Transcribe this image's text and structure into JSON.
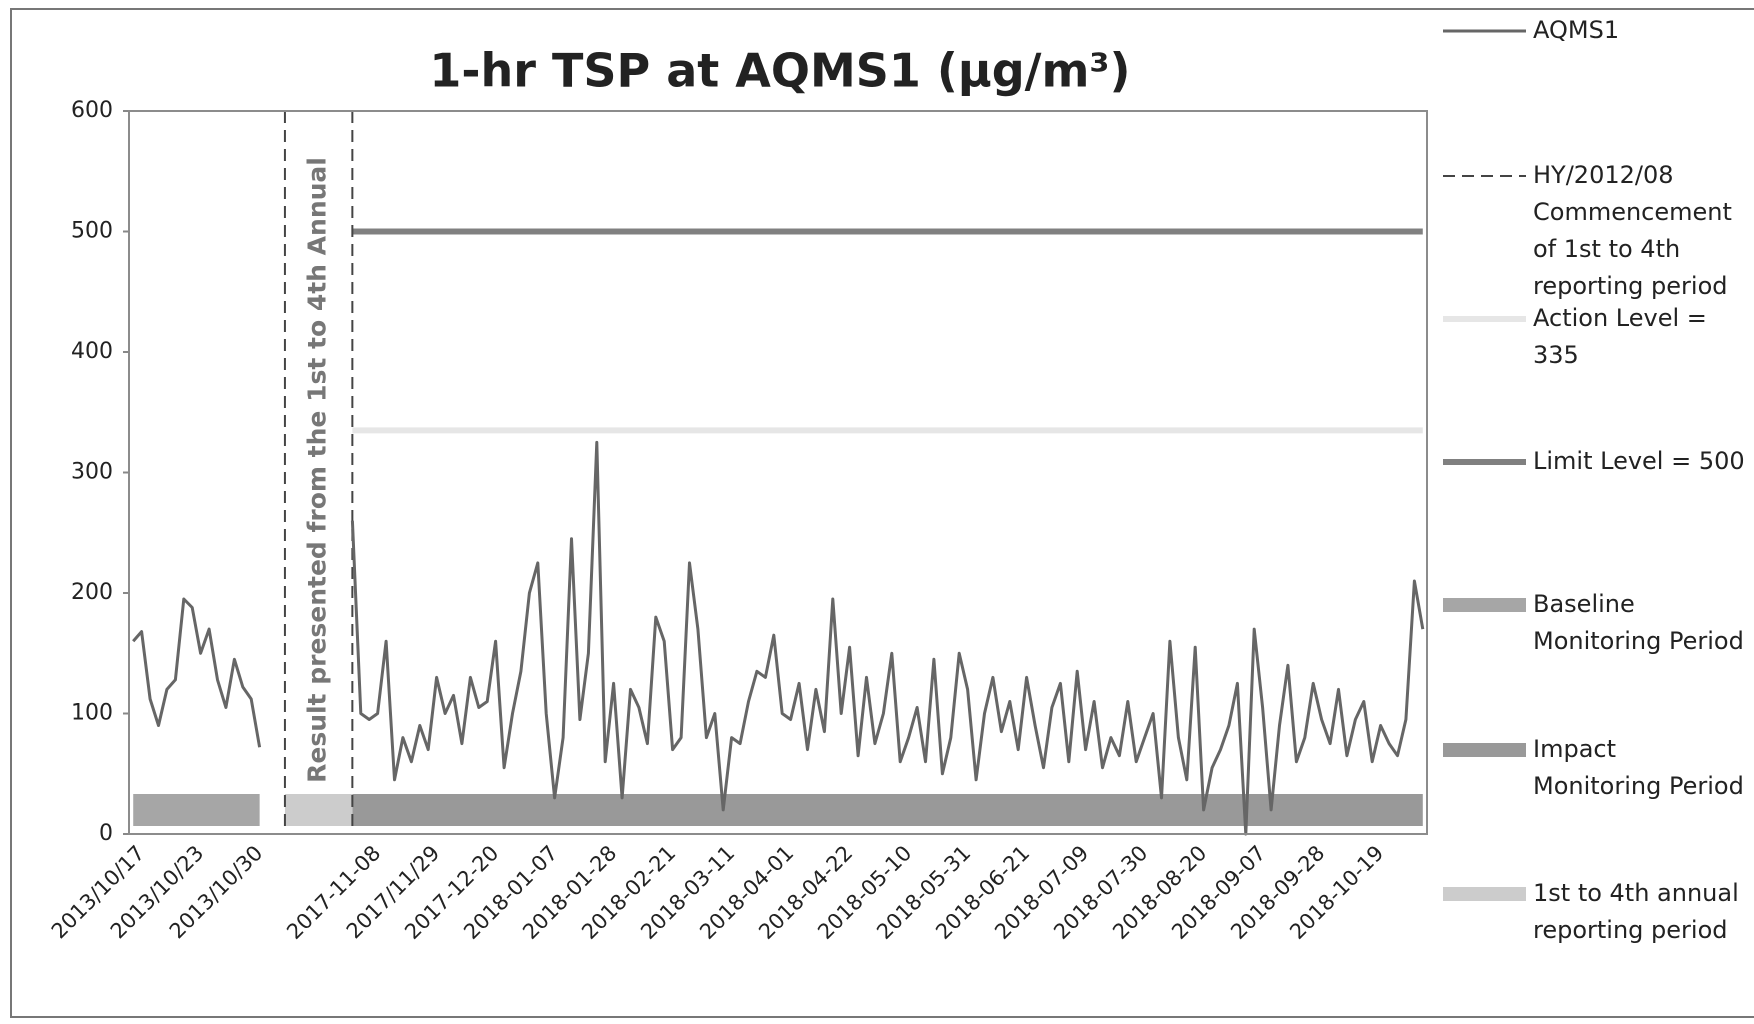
{
  "chart_data": {
    "type": "line",
    "title": "1-hr TSP at AQMS1 (µg/m³)",
    "annotation": "Result presented from the 1st to 4th Annual",
    "ylim": [
      0,
      600
    ],
    "yticks": [
      0,
      100,
      200,
      300,
      400,
      500,
      600
    ],
    "grid": false,
    "categories": [
      null,
      "2013/10/17",
      null,
      null,
      null,
      null,
      null,
      null,
      "2013/10/23",
      null,
      null,
      null,
      null,
      null,
      null,
      "2013/10/30",
      null,
      null,
      null,
      null,
      null,
      null,
      null,
      null,
      null,
      null,
      null,
      null,
      null,
      "2017-11-08",
      null,
      null,
      null,
      null,
      null,
      null,
      "2017/11/29",
      null,
      null,
      null,
      null,
      null,
      null,
      "2017-12-20",
      null,
      null,
      null,
      null,
      null,
      null,
      "2018-01-07",
      null,
      null,
      null,
      null,
      null,
      null,
      "2018-01-28",
      null,
      null,
      null,
      null,
      null,
      null,
      "2018-02-21",
      null,
      null,
      null,
      null,
      null,
      null,
      "2018-03-11",
      null,
      null,
      null,
      null,
      null,
      null,
      "2018-04-01",
      null,
      null,
      null,
      null,
      null,
      null,
      "2018-04-22",
      null,
      null,
      null,
      null,
      null,
      null,
      "2018-05-10",
      null,
      null,
      null,
      null,
      null,
      null,
      "2018-05-31",
      null,
      null,
      null,
      null,
      null,
      null,
      "2018-06-21",
      null,
      null,
      null,
      null,
      null,
      null,
      "2018-07-09",
      null,
      null,
      null,
      null,
      null,
      null,
      "2018-07-30",
      null,
      null,
      null,
      null,
      null,
      null,
      "2018-08-20",
      null,
      null,
      null,
      null,
      null,
      null,
      "2018-09-07",
      null,
      null,
      null,
      null,
      null,
      null,
      "2018-09-28",
      null,
      null,
      null,
      null,
      null,
      null,
      "2018-10-19",
      null,
      null,
      null,
      null,
      null
    ],
    "series": [
      {
        "name": "AQMS1",
        "type": "line",
        "color": "#666666",
        "values": [
          160,
          168,
          112,
          90,
          120,
          128,
          195,
          188,
          150,
          170,
          128,
          105,
          145,
          122,
          112,
          72,
          null,
          null,
          null,
          null,
          null,
          null,
          null,
          null,
          null,
          null,
          260,
          100,
          95,
          100,
          160,
          45,
          80,
          60,
          90,
          70,
          130,
          100,
          115,
          75,
          130,
          105,
          110,
          160,
          55,
          100,
          135,
          200,
          225,
          100,
          30,
          80,
          245,
          95,
          150,
          325,
          60,
          125,
          30,
          120,
          105,
          75,
          180,
          160,
          70,
          80,
          225,
          170,
          80,
          100,
          20,
          80,
          75,
          110,
          135,
          130,
          165,
          100,
          95,
          125,
          70,
          120,
          85,
          195,
          100,
          155,
          65,
          130,
          75,
          100,
          150,
          60,
          80,
          105,
          60,
          145,
          50,
          80,
          150,
          120,
          45,
          100,
          130,
          85,
          110,
          70,
          130,
          90,
          55,
          105,
          125,
          60,
          135,
          70,
          110,
          55,
          80,
          65,
          110,
          60,
          80,
          100,
          30,
          160,
          80,
          45,
          155,
          20,
          55,
          70,
          90,
          125,
          0,
          170,
          105,
          20,
          90,
          140,
          60,
          80,
          125,
          95,
          75,
          120,
          65,
          95,
          110,
          60,
          90,
          75,
          65,
          95,
          210,
          170
        ]
      },
      {
        "name": "HY/2012/08 Commencement of 1st to 4th reporting period",
        "type": "vline",
        "color": "#444444",
        "x": [
          18,
          26
        ]
      },
      {
        "name": "Action Level = 335",
        "type": "hline",
        "color": "#e6e6e6",
        "value": 335,
        "x": [
          26,
          153
        ]
      },
      {
        "name": "Limit Level = 500",
        "type": "hline",
        "color": "#808080",
        "value": 500,
        "x": [
          26,
          153
        ]
      },
      {
        "name": "Baseline Monitoring Period",
        "type": "band",
        "color": "#a6a6a6",
        "x": [
          0,
          15
        ]
      },
      {
        "name": "Impact Monitoring Period",
        "type": "band",
        "color": "#999999",
        "x": [
          26,
          153
        ]
      },
      {
        "name": "1st to 4th annual reporting period",
        "type": "band",
        "color": "#cccccc",
        "x": [
          18,
          26
        ]
      }
    ]
  }
}
